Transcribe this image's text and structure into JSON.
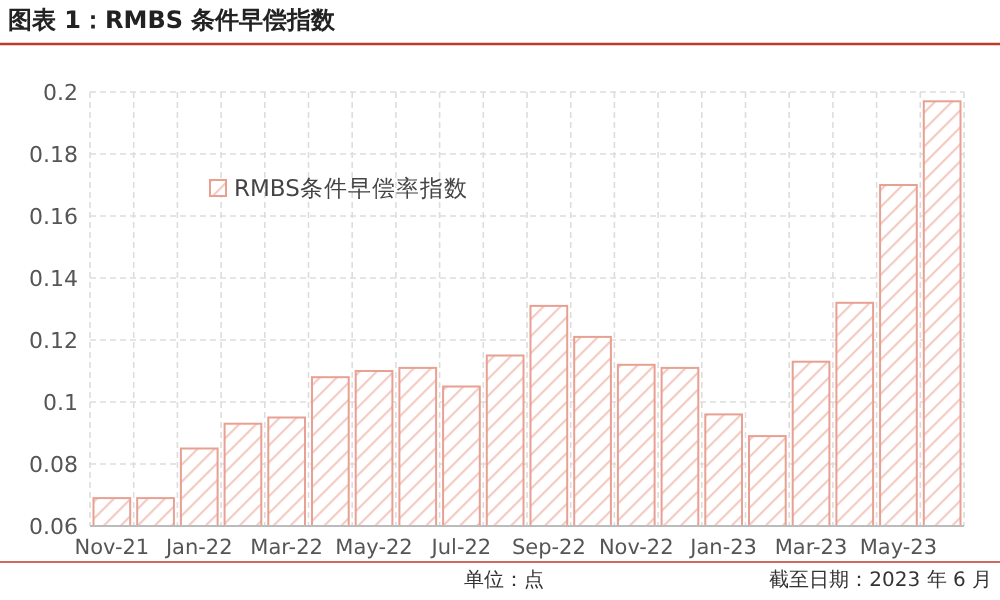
{
  "chart_data": {
    "type": "bar",
    "title": "图表 1：RMBS 条件早偿指数",
    "categories": [
      "Nov-21",
      null,
      "Jan-22",
      null,
      "Mar-22",
      null,
      "May-22",
      null,
      "Jul-22",
      null,
      "Sep-22",
      null,
      "Nov-22",
      null,
      "Jan-23",
      null,
      "Mar-23",
      null,
      "May-23",
      null
    ],
    "series": [
      {
        "name": "RMBS条件早偿率指数",
        "color": "#e8a092",
        "values": [
          0.069,
          0.069,
          0.085,
          0.093,
          0.095,
          0.108,
          0.11,
          0.111,
          0.105,
          0.115,
          0.131,
          0.121,
          0.112,
          0.111,
          0.096,
          0.089,
          0.113,
          0.132,
          0.17,
          0.197
        ]
      }
    ],
    "ylim": [
      0.06,
      0.2
    ],
    "yticks": [
      0.06,
      0.08,
      0.1,
      0.12,
      0.14,
      0.16,
      0.18,
      0.2
    ],
    "grid": true,
    "legend": "top left",
    "annotations": [
      "单位：点",
      "截至日期：2023 年 6 月"
    ]
  }
}
